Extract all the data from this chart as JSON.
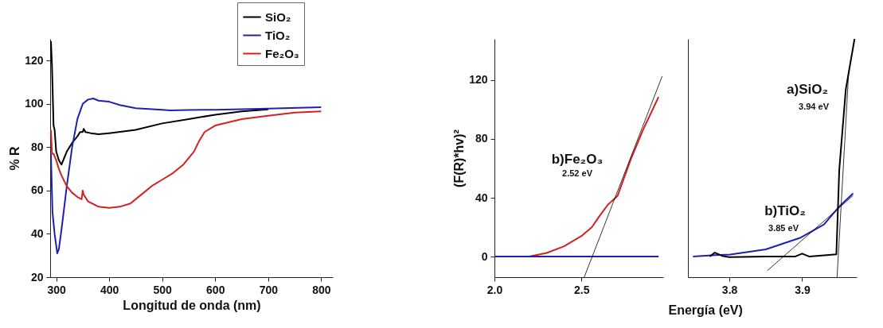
{
  "chart_data": [
    {
      "type": "line",
      "xlabel": "Longitud de onda (nm)",
      "ylabel": "% R",
      "xlim": [
        288.6,
        822
      ],
      "ylim": [
        20,
        130
      ],
      "xticks": [
        300,
        400,
        500,
        600,
        700,
        800
      ],
      "yticks": [
        20,
        40,
        60,
        80,
        100,
        120
      ],
      "legend": "top right",
      "series": [
        {
          "name": "SiO₂",
          "color": "#000000",
          "x": [
            290,
            292,
            295,
            297,
            300,
            305,
            310,
            315,
            320,
            330,
            340,
            345,
            350,
            352,
            355,
            365,
            380,
            400,
            450,
            500,
            550,
            600,
            650,
            700
          ],
          "values": [
            129,
            118,
            90,
            88,
            78,
            74,
            72,
            75,
            78,
            82,
            85,
            87,
            87,
            88.5,
            87,
            86.5,
            86,
            86.5,
            88,
            91,
            93,
            95,
            96.5,
            97.5
          ]
        },
        {
          "name": "TiO₂",
          "color": "#1f1fb4",
          "x": [
            290,
            293,
            297,
            302,
            305,
            310,
            320,
            330,
            340,
            350,
            360,
            370,
            380,
            400,
            420,
            450,
            500,
            515,
            550,
            600,
            700,
            800
          ],
          "values": [
            77,
            50,
            40,
            31,
            33,
            42,
            62,
            80,
            93,
            100,
            102,
            102.5,
            101.5,
            101,
            99.5,
            98,
            97.3,
            97,
            97.2,
            97.3,
            97.8,
            98.5
          ]
        },
        {
          "name": "Fe₂O₃",
          "color": "#d42020",
          "x": [
            290,
            292,
            295,
            300,
            305,
            310,
            320,
            330,
            340,
            348,
            350,
            352,
            360,
            380,
            400,
            420,
            440,
            460,
            480,
            500,
            520,
            540,
            560,
            570,
            580,
            600,
            650,
            700,
            750,
            800
          ],
          "values": [
            88,
            77,
            77,
            74,
            70,
            67,
            62,
            59,
            57,
            56,
            60,
            58,
            55,
            52.5,
            52,
            52.5,
            54,
            58,
            62,
            65,
            68,
            72,
            78,
            83,
            87,
            90,
            93,
            94.5,
            96,
            96.5
          ]
        }
      ]
    },
    {
      "type": "line",
      "ylabel": "(F(R)*hv)²",
      "xlim": [
        2.0,
        2.97
      ],
      "ylim": [
        -14,
        148
      ],
      "xticks": [
        {
          "value": 2,
          "label": "2.0"
        },
        2.5
      ],
      "yticks": [
        0,
        40,
        80,
        120
      ],
      "annotations": [
        "b)Fe₂O₃",
        "2.52 eV"
      ],
      "series": [
        {
          "color": "#d42020",
          "x": [
            2.0,
            2.2,
            2.3,
            2.4,
            2.5,
            2.56,
            2.6,
            2.65,
            2.708,
            2.783,
            2.857,
            2.943
          ],
          "values": [
            0,
            0,
            2.5,
            7,
            14,
            20,
            27,
            35,
            41.4,
            66,
            87,
            108.5
          ]
        },
        {
          "color": "#1f1fb4",
          "x": [
            2.0,
            2.943
          ],
          "values": [
            0,
            0
          ]
        },
        {
          "color": "#000000",
          "x": [
            2.516,
            2.964
          ],
          "values": [
            -14,
            122.7
          ]
        }
      ]
    },
    {
      "type": "line",
      "xlabel": "Energía (eV)",
      "xlim": [
        3.743,
        3.975
      ],
      "ylim": [
        -14,
        148
      ],
      "xticks": [
        3.8,
        3.9
      ],
      "tick_labels": "x",
      "annotations": [
        "a)SiO₂",
        "3.94 eV",
        "b)TiO₂",
        "3.85 eV"
      ],
      "series": [
        {
          "color": "#1f1fb4",
          "x": [
            3.75,
            3.78,
            3.801,
            3.85,
            3.898,
            3.93,
            3.951,
            3.97
          ],
          "values": [
            0,
            1,
            1.4,
            4.9,
            12.9,
            21.8,
            34,
            43
          ]
        },
        {
          "color": "#000000",
          "x": [
            3.773,
            3.78,
            3.79,
            3.8,
            3.85,
            3.89,
            3.9,
            3.91,
            3.947,
            3.951,
            3.96,
            3.972
          ],
          "values": [
            0,
            2.7,
            0.5,
            -0.4,
            0,
            0,
            2,
            0,
            1.5,
            59,
            113.8,
            148
          ]
        },
        {
          "color": "#000000",
          "x": [
            3.852,
            3.97
          ],
          "values": [
            -9.6,
            41.5
          ]
        },
        {
          "color": "#000000",
          "x": [
            3.948,
            3.964
          ],
          "values": [
            -14,
            126
          ]
        }
      ]
    }
  ]
}
